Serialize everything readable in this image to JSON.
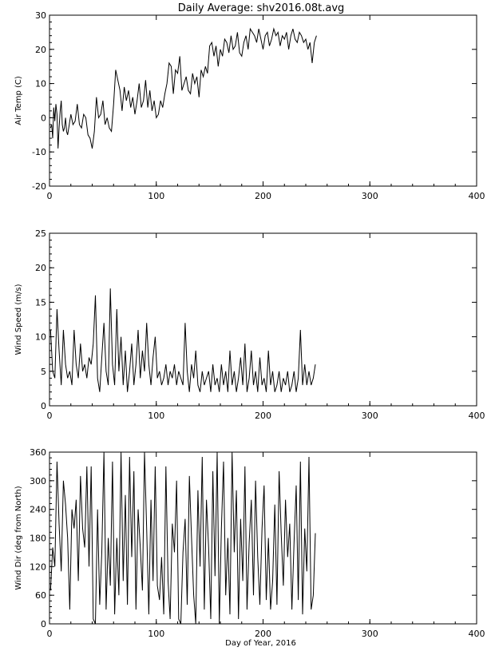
{
  "figure_title": "Daily Average: shv2016.08t.avg",
  "chart_data": [
    {
      "type": "line",
      "ylabel": "Air Temp (C)",
      "xlim": [
        0,
        400
      ],
      "ylim": [
        -20,
        30
      ],
      "xticks": [
        0,
        100,
        200,
        300,
        400
      ],
      "yticks": [
        -20,
        -10,
        0,
        10,
        20,
        30
      ],
      "series": [
        {
          "x": [
            1,
            2,
            3,
            4,
            5,
            6,
            7,
            8,
            9,
            10,
            11,
            12,
            13,
            14,
            15,
            16,
            17,
            18,
            19,
            20,
            22,
            24,
            26,
            28,
            30,
            32,
            34,
            36,
            38,
            40,
            42,
            44,
            46,
            48,
            50,
            52,
            54,
            56,
            58,
            60,
            62,
            64,
            66,
            68,
            70,
            72,
            74,
            76,
            78,
            80,
            82,
            84,
            86,
            88,
            90,
            92,
            94,
            96,
            98,
            100,
            102,
            104,
            106,
            108,
            110,
            112,
            114,
            116,
            118,
            120,
            122,
            124,
            126,
            128,
            130,
            132,
            134,
            136,
            138,
            140,
            142,
            144,
            146,
            148,
            150,
            152,
            154,
            156,
            158,
            160,
            162,
            164,
            166,
            168,
            170,
            172,
            174,
            176,
            178,
            180,
            182,
            184,
            186,
            188,
            190,
            192,
            194,
            196,
            198,
            200,
            202,
            204,
            206,
            208,
            210,
            212,
            214,
            216,
            218,
            220,
            222,
            224,
            226,
            228,
            230,
            232,
            234,
            236,
            238,
            240,
            242,
            244,
            246,
            248,
            250
          ],
          "y": [
            -3,
            -2,
            -6,
            3,
            -1,
            4,
            1,
            -9,
            -3,
            2,
            5,
            -2,
            -4,
            -3,
            0,
            -4,
            -5,
            -3,
            -1,
            1,
            -2,
            -1,
            4,
            -2,
            -3,
            1,
            0,
            -5,
            -6,
            -9,
            -4,
            6,
            0,
            1,
            5,
            -2,
            0,
            -3,
            -4,
            4,
            14,
            11,
            8,
            2,
            9,
            5,
            8,
            3,
            6,
            1,
            5,
            10,
            3,
            5,
            11,
            3,
            8,
            2,
            5,
            0,
            1,
            5,
            3,
            7,
            10,
            16,
            15,
            7,
            14,
            13,
            18,
            8,
            10,
            12,
            8,
            7,
            13,
            10,
            12,
            6,
            14,
            12,
            15,
            13,
            21,
            22,
            18,
            21,
            15,
            20,
            18,
            23,
            22,
            19,
            24,
            20,
            21,
            25,
            19,
            18,
            22,
            24,
            20,
            26,
            25,
            24,
            22,
            26,
            23,
            20,
            24,
            25,
            21,
            23,
            26,
            24,
            25,
            21,
            24,
            23,
            25,
            20,
            24,
            26,
            23,
            22,
            25,
            24,
            22,
            23,
            20,
            22,
            16,
            22,
            24
          ]
        }
      ]
    },
    {
      "type": "line",
      "ylabel": "Wind Speed (m/s)",
      "xlim": [
        0,
        400
      ],
      "ylim": [
        0,
        25
      ],
      "xticks": [
        0,
        100,
        200,
        300,
        400
      ],
      "yticks": [
        0,
        5,
        10,
        15,
        20,
        25
      ],
      "series": [
        {
          "x": [
            1,
            3,
            5,
            7,
            9,
            11,
            13,
            15,
            17,
            19,
            21,
            23,
            25,
            27,
            29,
            31,
            33,
            35,
            37,
            39,
            41,
            43,
            45,
            47,
            49,
            51,
            53,
            55,
            57,
            59,
            61,
            63,
            65,
            67,
            69,
            71,
            73,
            75,
            77,
            79,
            81,
            83,
            85,
            87,
            89,
            91,
            93,
            95,
            97,
            99,
            101,
            103,
            105,
            107,
            109,
            111,
            113,
            115,
            117,
            119,
            121,
            123,
            125,
            127,
            129,
            131,
            133,
            135,
            137,
            139,
            141,
            143,
            145,
            147,
            149,
            151,
            153,
            155,
            157,
            159,
            161,
            163,
            165,
            167,
            169,
            171,
            173,
            175,
            177,
            179,
            181,
            183,
            185,
            187,
            189,
            191,
            193,
            195,
            197,
            199,
            201,
            203,
            205,
            207,
            209,
            211,
            213,
            215,
            217,
            219,
            221,
            223,
            225,
            227,
            229,
            231,
            233,
            235,
            237,
            239,
            241,
            243,
            245,
            247,
            249
          ],
          "y": [
            11,
            5,
            4,
            14,
            8,
            3,
            11,
            6,
            4,
            5,
            3,
            11,
            6,
            4,
            9,
            5,
            6,
            4,
            7,
            6,
            9,
            16,
            4,
            2,
            7,
            12,
            5,
            3,
            17,
            6,
            3,
            14,
            5,
            10,
            3,
            8,
            2,
            5,
            9,
            3,
            6,
            11,
            4,
            8,
            5,
            12,
            6,
            3,
            7,
            10,
            4,
            5,
            3,
            4,
            6,
            3,
            5,
            4,
            6,
            3,
            5,
            4,
            3,
            12,
            5,
            2,
            6,
            4,
            8,
            3,
            2,
            5,
            3,
            4,
            5,
            2,
            6,
            3,
            4,
            2,
            6,
            3,
            5,
            2,
            8,
            3,
            5,
            2,
            4,
            7,
            3,
            9,
            2,
            4,
            8,
            3,
            5,
            2,
            7,
            3,
            4,
            2,
            8,
            3,
            5,
            2,
            3,
            5,
            2,
            4,
            3,
            5,
            2,
            3,
            5,
            2,
            4,
            11,
            3,
            6,
            3,
            5,
            3,
            4,
            6
          ]
        }
      ]
    },
    {
      "type": "line",
      "ylabel": "Wind Dir (deg from North)",
      "xlabel": "Day of Year, 2016",
      "xlim": [
        0,
        400
      ],
      "ylim": [
        0,
        360
      ],
      "xticks": [
        0,
        100,
        200,
        300,
        400
      ],
      "yticks": [
        0,
        60,
        120,
        180,
        240,
        300,
        360
      ],
      "series": [
        {
          "x": [
            1,
            3,
            5,
            7,
            9,
            11,
            13,
            15,
            17,
            19,
            21,
            23,
            25,
            27,
            29,
            31,
            33,
            35,
            37,
            39,
            41,
            43,
            45,
            47,
            49,
            51,
            53,
            55,
            57,
            59,
            61,
            63,
            65,
            67,
            69,
            71,
            73,
            75,
            77,
            79,
            81,
            83,
            85,
            87,
            89,
            91,
            93,
            95,
            97,
            99,
            101,
            103,
            105,
            107,
            109,
            111,
            113,
            115,
            117,
            119,
            121,
            123,
            125,
            127,
            129,
            131,
            133,
            135,
            137,
            139,
            141,
            143,
            145,
            147,
            149,
            151,
            153,
            155,
            157,
            159,
            161,
            163,
            165,
            167,
            169,
            171,
            173,
            175,
            177,
            179,
            181,
            183,
            185,
            187,
            189,
            191,
            193,
            195,
            197,
            199,
            201,
            203,
            205,
            207,
            209,
            211,
            213,
            215,
            217,
            219,
            221,
            223,
            225,
            227,
            229,
            231,
            233,
            235,
            237,
            239,
            241,
            243,
            245,
            247,
            249
          ],
          "y": [
            70,
            160,
            120,
            340,
            210,
            110,
            300,
            250,
            180,
            30,
            240,
            200,
            260,
            90,
            310,
            200,
            160,
            330,
            120,
            330,
            10,
            0,
            240,
            40,
            150,
            360,
            30,
            180,
            80,
            340,
            20,
            180,
            60,
            360,
            90,
            270,
            40,
            350,
            140,
            320,
            30,
            240,
            160,
            70,
            360,
            200,
            20,
            260,
            90,
            330,
            80,
            50,
            140,
            20,
            330,
            90,
            10,
            210,
            150,
            300,
            10,
            0,
            150,
            220,
            40,
            310,
            180,
            60,
            0,
            280,
            120,
            350,
            30,
            260,
            160,
            10,
            320,
            100,
            360,
            0,
            200,
            340,
            60,
            180,
            20,
            360,
            150,
            280,
            10,
            220,
            90,
            330,
            30,
            170,
            260,
            60,
            300,
            140,
            40,
            200,
            290,
            50,
            180,
            30,
            90,
            250,
            40,
            320,
            190,
            80,
            260,
            140,
            210,
            30,
            170,
            290,
            50,
            340,
            20,
            200,
            110,
            350,
            30,
            60,
            190
          ]
        }
      ]
    }
  ]
}
